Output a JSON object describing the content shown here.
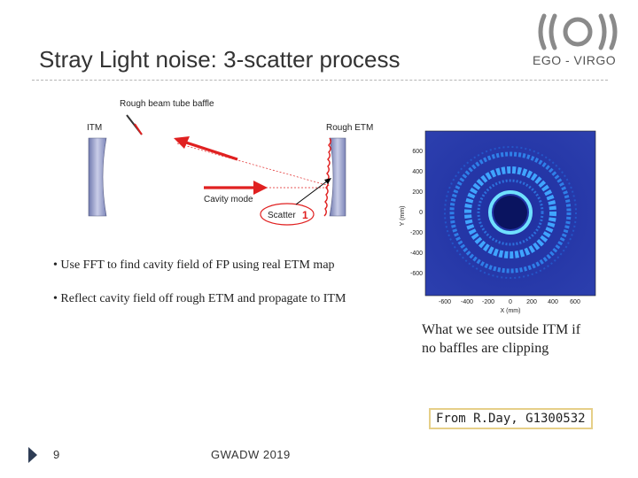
{
  "slide": {
    "title": "Stray Light noise: 3-scatter process",
    "organization": "EGO - VIRGO",
    "logo_name": "ego-virgo-logo"
  },
  "diagram": {
    "baffle_label": "Rough beam tube baffle",
    "itm_label": "ITM",
    "etm_label": "Rough ETM",
    "cavity_label": "Cavity mode",
    "scatter_label": "Scatter",
    "scatter_number": "1",
    "colors": {
      "beam": "#e02020",
      "mirror": "#8e97c4",
      "highlight": "#e02020"
    }
  },
  "bullets": [
    "• Use FFT to find cavity field of FP using real ETM map",
    "• Reflect cavity field off rough ETM and propagate to ITM"
  ],
  "plot": {
    "ylabel": "Y (mm)",
    "xlabel": "X (mm)",
    "y_ticks": [
      "600",
      "400",
      "200",
      "0",
      "-200",
      "-400",
      "-600"
    ],
    "x_ticks": [
      "-600",
      "-400",
      "-200",
      "0",
      "200",
      "400",
      "600"
    ],
    "colors": {
      "background": "#2a3ca8",
      "ring": "#3fb8ff",
      "core": "#0a1460"
    }
  },
  "caption": {
    "line1": "What we see outside ITM if",
    "line2": "no baffles are clipping"
  },
  "source": "From R.Day, G1300532",
  "footer": {
    "page_number": "9",
    "event": "GWADW 2019"
  }
}
